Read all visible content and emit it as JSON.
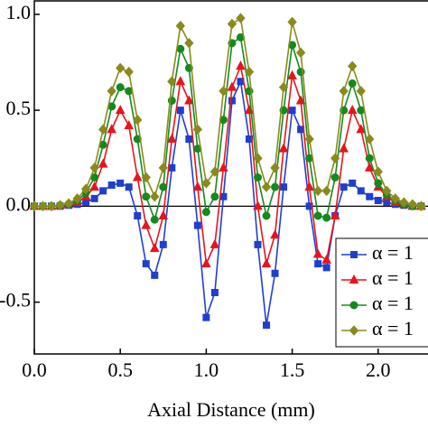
{
  "chart_data": {
    "type": "line",
    "xlabel": "Axial Distance (mm)",
    "x": [
      0,
      0.05,
      0.1,
      0.15,
      0.2,
      0.25,
      0.3,
      0.35,
      0.4,
      0.45,
      0.5,
      0.55,
      0.6,
      0.65,
      0.7,
      0.75,
      0.8,
      0.85,
      0.9,
      0.95,
      1.0,
      1.05,
      1.1,
      1.15,
      1.2,
      1.25,
      1.3,
      1.35,
      1.4,
      1.45,
      1.5,
      1.55,
      1.6,
      1.65,
      1.7,
      1.75,
      1.8,
      1.85,
      1.9,
      1.95,
      2.0,
      2.05,
      2.1,
      2.15,
      2.2,
      2.25
    ],
    "series": [
      {
        "name": "α = 1",
        "color": "#1f3fd0",
        "marker": "square",
        "values": [
          0,
          0,
          0,
          0,
          0.005,
          0.01,
          0.02,
          0.04,
          0.08,
          0.11,
          0.12,
          0.1,
          -0.05,
          -0.3,
          -0.36,
          -0.2,
          0.2,
          0.5,
          0.35,
          -0.1,
          -0.58,
          -0.45,
          0.05,
          0.55,
          0.65,
          0.35,
          -0.2,
          -0.62,
          -0.35,
          0.1,
          0.5,
          0.4,
          0,
          -0.3,
          -0.32,
          -0.05,
          0.1,
          0.12,
          0.08,
          0.05,
          0.03,
          0.02,
          0.01,
          0.005,
          0,
          0
        ]
      },
      {
        "name": "α = 1",
        "color": "#e8141c",
        "marker": "triangle",
        "values": [
          0,
          0,
          0,
          0.005,
          0.01,
          0.02,
          0.05,
          0.1,
          0.22,
          0.4,
          0.5,
          0.42,
          0.15,
          -0.1,
          -0.22,
          -0.05,
          0.35,
          0.65,
          0.55,
          0.1,
          -0.3,
          -0.2,
          0.2,
          0.62,
          0.73,
          0.5,
          0,
          -0.3,
          -0.15,
          0.3,
          0.68,
          0.55,
          0.1,
          -0.25,
          -0.28,
          -0.05,
          0.3,
          0.5,
          0.4,
          0.2,
          0.1,
          0.05,
          0.02,
          0.01,
          0,
          0
        ]
      },
      {
        "name": "α = 1",
        "color": "#138a1e",
        "marker": "circle",
        "values": [
          0,
          0,
          0,
          0.005,
          0.01,
          0.03,
          0.07,
          0.15,
          0.32,
          0.52,
          0.62,
          0.6,
          0.35,
          0.05,
          -0.07,
          0.1,
          0.55,
          0.82,
          0.72,
          0.3,
          -0.03,
          0.05,
          0.45,
          0.85,
          0.88,
          0.6,
          0.15,
          -0.05,
          0.1,
          0.5,
          0.84,
          0.7,
          0.25,
          -0.05,
          -0.06,
          0.15,
          0.5,
          0.64,
          0.5,
          0.25,
          0.12,
          0.06,
          0.03,
          0.01,
          0,
          0
        ]
      },
      {
        "name": "α = 1",
        "color": "#8a8a1c",
        "marker": "diamond",
        "values": [
          0,
          0,
          0,
          0.005,
          0.015,
          0.04,
          0.09,
          0.2,
          0.4,
          0.6,
          0.72,
          0.7,
          0.45,
          0.15,
          0.05,
          0.2,
          0.65,
          0.94,
          0.85,
          0.4,
          0.12,
          0.18,
          0.6,
          0.95,
          0.98,
          0.7,
          0.25,
          0.1,
          0.2,
          0.62,
          0.96,
          0.8,
          0.35,
          0.08,
          0.08,
          0.25,
          0.6,
          0.73,
          0.6,
          0.35,
          0.18,
          0.08,
          0.04,
          0.02,
          0.01,
          0
        ]
      }
    ],
    "xlim": [
      0,
      2.29
    ],
    "xticks": [
      {
        "value": 0,
        "label": "0.0"
      },
      {
        "value": 0.5,
        "label": "0.5"
      },
      {
        "value": 1,
        "label": "1.0"
      },
      {
        "value": 1.5,
        "label": "1.5"
      },
      {
        "value": 2,
        "label": "2.0"
      }
    ],
    "ylim": [
      -0.77,
      1.07
    ],
    "yticks": [
      {
        "value": -0.5,
        "label": "-0.5"
      },
      {
        "value": 0,
        "label": "0.0"
      },
      {
        "value": 0.5,
        "label": "0.5"
      },
      {
        "value": 1,
        "label": "1.0"
      }
    ],
    "hline": 0,
    "legend": "lower right"
  }
}
